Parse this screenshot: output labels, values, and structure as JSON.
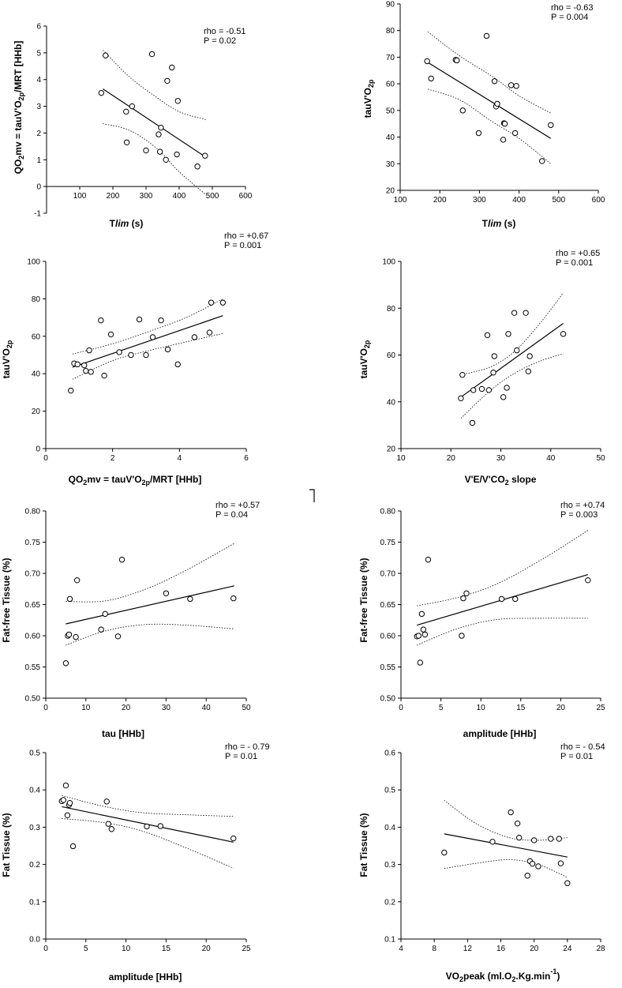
{
  "chart_data": [
    {
      "type": "scatter",
      "id": "p1",
      "xlim": [
        0,
        600
      ],
      "xticks": [
        100,
        200,
        300,
        400,
        500,
        600
      ],
      "ylim": [
        -1,
        6
      ],
      "yticks": [
        -1,
        0,
        1,
        2,
        3,
        4,
        5,
        6
      ],
      "stat_rho": "rho = -0.51",
      "stat_p": "P = 0.02",
      "x": [
        165,
        178,
        240,
        242,
        258,
        300,
        318,
        338,
        342,
        345,
        360,
        364,
        378,
        393,
        396,
        455,
        478
      ],
      "y": [
        3.5,
        4.9,
        2.8,
        1.65,
        3.0,
        1.35,
        4.95,
        1.95,
        1.3,
        2.2,
        1.0,
        3.95,
        4.45,
        1.2,
        3.2,
        0.75,
        1.15
      ],
      "fit": {
        "x": [
          170,
          480
        ],
        "y": [
          3.65,
          1.1
        ]
      },
      "ci_upper": {
        "x": [
          170,
          250,
          330,
          400,
          480
        ],
        "y": [
          5.1,
          4.1,
          3.35,
          2.8,
          2.5
        ]
      },
      "ci_lower": {
        "x": [
          170,
          250,
          330,
          400,
          480
        ],
        "y": [
          2.35,
          2.1,
          1.45,
          0.55,
          -0.3
        ]
      }
    },
    {
      "type": "scatter",
      "id": "p2",
      "stat_rho": "rho = -0.63",
      "stat_p": "P = 0.004",
      "xlim": [
        100,
        600
      ],
      "xticks": [
        100,
        200,
        300,
        400,
        500,
        600
      ],
      "ylim": [
        20,
        90
      ],
      "yticks": [
        20,
        30,
        40,
        50,
        60,
        70,
        80,
        90
      ],
      "x": [
        168,
        178,
        240,
        243,
        258,
        298,
        318,
        338,
        342,
        345,
        360,
        362,
        364,
        380,
        390,
        393,
        458,
        480
      ],
      "y": [
        68.5,
        62,
        69,
        68.8,
        50,
        41.5,
        78,
        61,
        51.5,
        52.5,
        39,
        45.2,
        45,
        59.5,
        41.5,
        59.2,
        31,
        44.5
      ],
      "fit": {
        "x": [
          170,
          480
        ],
        "y": [
          68,
          39.5
        ]
      },
      "ci_upper": {
        "x": [
          170,
          250,
          330,
          400,
          480
        ],
        "y": [
          79.5,
          70.5,
          63,
          55.5,
          49
        ]
      },
      "ci_lower": {
        "x": [
          170,
          250,
          330,
          400,
          480
        ],
        "y": [
          58,
          54,
          46,
          39.5,
          30
        ]
      }
    },
    {
      "type": "scatter",
      "id": "p3",
      "stat_rho": "rho = +0.67",
      "stat_p": "P = 0.001",
      "xlim": [
        0,
        6
      ],
      "xticks": [
        0,
        2,
        4,
        6
      ],
      "ylim": [
        0,
        100
      ],
      "yticks": [
        0,
        20,
        40,
        60,
        80,
        100
      ],
      "x": [
        0.75,
        0.85,
        0.95,
        1.15,
        1.2,
        1.3,
        1.35,
        1.65,
        1.75,
        1.95,
        2.2,
        2.55,
        2.8,
        3.0,
        3.2,
        3.45,
        3.65,
        3.95,
        4.45,
        4.9,
        4.95,
        5.3
      ],
      "y": [
        31,
        45.5,
        45,
        44.5,
        41.5,
        52.5,
        41,
        68.5,
        39,
        61,
        51.5,
        50,
        69,
        50,
        59.5,
        68.5,
        53,
        45,
        59.5,
        62,
        78,
        78
      ],
      "fit": {
        "x": [
          0.8,
          5.3
        ],
        "y": [
          43.5,
          71
        ]
      },
      "ci_upper": {
        "x": [
          0.8,
          2.0,
          3.0,
          4.2,
          5.3
        ],
        "y": [
          50.5,
          56,
          62,
          70,
          80
        ]
      },
      "ci_lower": {
        "x": [
          0.8,
          2.0,
          3.0,
          4.2,
          5.3
        ],
        "y": [
          37,
          47,
          52,
          57,
          61.5
        ]
      }
    },
    {
      "type": "scatter",
      "id": "p4",
      "stat_rho": "rho = +0.65",
      "stat_p": "P = 0.001",
      "xlim": [
        10,
        50
      ],
      "xticks": [
        10,
        20,
        30,
        40,
        50
      ],
      "ylim": [
        20,
        100
      ],
      "yticks": [
        20,
        40,
        60,
        80,
        100
      ],
      "x": [
        22,
        22.3,
        24.5,
        24.3,
        26.2,
        27.3,
        27.6,
        28.5,
        28.7,
        30.5,
        31.2,
        31.5,
        32.7,
        33.2,
        35,
        35.5,
        35.8,
        42.5
      ],
      "y": [
        41.5,
        51.5,
        45,
        31,
        45.5,
        68.5,
        45,
        52.5,
        59.5,
        42,
        46,
        69,
        78,
        62,
        78,
        53,
        59.5,
        69
      ],
      "fit": {
        "x": [
          22,
          42.5
        ],
        "y": [
          42,
          73.5
        ]
      },
      "ci_upper": {
        "x": [
          22,
          28,
          33,
          38,
          42.5
        ],
        "y": [
          51.5,
          55,
          62,
          74,
          86.5
        ]
      },
      "ci_lower": {
        "x": [
          22,
          28,
          33,
          38,
          42.5
        ],
        "y": [
          33,
          45,
          52.5,
          57.5,
          60.5
        ]
      }
    },
    {
      "type": "scatter",
      "id": "p5",
      "stat_rho": "rho = +0.57",
      "stat_p": "P = 0.04",
      "xlim": [
        0,
        50
      ],
      "xticks": [
        0,
        10,
        20,
        30,
        40,
        50
      ],
      "ylim": [
        0.5,
        0.8
      ],
      "yticks": [
        0.5,
        0.55,
        0.6,
        0.65,
        0.7,
        0.75,
        0.8
      ],
      "ytick_labels": [
        "0.50",
        "0.55",
        "0.60",
        "0.65",
        "0.70",
        "0.75",
        "0.80"
      ],
      "x": [
        5.0,
        5.5,
        5.8,
        6.0,
        7.5,
        7.8,
        13.8,
        14.8,
        18,
        19,
        30,
        36,
        46.8
      ],
      "y": [
        0.556,
        0.6,
        0.602,
        0.659,
        0.598,
        0.689,
        0.61,
        0.635,
        0.599,
        0.722,
        0.668,
        0.659,
        0.66
      ],
      "fit": {
        "x": [
          5,
          47
        ],
        "y": [
          0.619,
          0.68
        ]
      },
      "ci_upper": {
        "x": [
          5,
          15,
          25,
          35,
          47
        ],
        "y": [
          0.655,
          0.656,
          0.675,
          0.705,
          0.748
        ]
      },
      "ci_lower": {
        "x": [
          5,
          15,
          25,
          35,
          47
        ],
        "y": [
          0.585,
          0.608,
          0.618,
          0.617,
          0.611
        ]
      }
    },
    {
      "type": "scatter",
      "id": "p6",
      "stat_rho": "rho = +0.74",
      "stat_p": "P = 0.003",
      "xlim": [
        0,
        25
      ],
      "xticks": [
        0,
        5,
        10,
        15,
        20,
        25
      ],
      "ylim": [
        0.5,
        0.8
      ],
      "yticks": [
        0.5,
        0.55,
        0.6,
        0.65,
        0.7,
        0.75,
        0.8
      ],
      "ytick_labels": [
        "0.50",
        "0.55",
        "0.60",
        "0.65",
        "0.70",
        "0.75",
        "0.80"
      ],
      "x": [
        2.0,
        2.2,
        2.4,
        2.6,
        2.8,
        3.0,
        3.4,
        7.6,
        7.8,
        8.2,
        12.6,
        14.3,
        23.4
      ],
      "y": [
        0.599,
        0.6,
        0.557,
        0.635,
        0.61,
        0.602,
        0.722,
        0.6,
        0.66,
        0.668,
        0.659,
        0.659,
        0.689
      ],
      "fit": {
        "x": [
          2,
          23.4
        ],
        "y": [
          0.617,
          0.698
        ]
      },
      "ci_upper": {
        "x": [
          2,
          7,
          12,
          18,
          23.4
        ],
        "y": [
          0.648,
          0.661,
          0.683,
          0.725,
          0.769
        ]
      },
      "ci_lower": {
        "x": [
          2,
          7,
          12,
          18,
          23.4
        ],
        "y": [
          0.585,
          0.611,
          0.626,
          0.628,
          0.628
        ]
      }
    },
    {
      "type": "scatter",
      "id": "p7",
      "stat_rho": "rho = - 0.79",
      "stat_p": "P = 0.01",
      "xlim": [
        0,
        25
      ],
      "xticks": [
        0,
        5,
        10,
        15,
        20,
        25
      ],
      "ylim": [
        0.0,
        0.5
      ],
      "yticks": [
        0.0,
        0.1,
        0.2,
        0.3,
        0.4,
        0.5
      ],
      "ytick_labels": [
        "0.0",
        "0.1",
        "0.2",
        "0.3",
        "0.4",
        "0.5"
      ],
      "x": [
        2.0,
        2.2,
        2.5,
        2.7,
        2.9,
        3.0,
        3.4,
        7.6,
        7.8,
        8.2,
        12.6,
        14.3,
        23.4
      ],
      "y": [
        0.37,
        0.373,
        0.412,
        0.332,
        0.36,
        0.365,
        0.249,
        0.369,
        0.309,
        0.295,
        0.302,
        0.303,
        0.27
      ],
      "fit": {
        "x": [
          2,
          23.4
        ],
        "y": [
          0.355,
          0.26
        ]
      },
      "ci_upper": {
        "x": [
          2,
          7,
          12,
          18,
          23.4
        ],
        "y": [
          0.385,
          0.357,
          0.339,
          0.333,
          0.329
        ]
      },
      "ci_lower": {
        "x": [
          2,
          7,
          12,
          18,
          23.4
        ],
        "y": [
          0.323,
          0.313,
          0.29,
          0.24,
          0.19
        ]
      }
    },
    {
      "type": "scatter",
      "id": "p8",
      "stat_rho": "rho = - 0.54",
      "stat_p": "P = 0.01",
      "xlim": [
        4,
        28
      ],
      "xticks": [
        4,
        8,
        12,
        16,
        20,
        24,
        28
      ],
      "ylim": [
        0.1,
        0.6
      ],
      "yticks": [
        0.1,
        0.2,
        0.3,
        0.4,
        0.5,
        0.6
      ],
      "ytick_labels": [
        "0.1",
        "0.2",
        "0.3",
        "0.4",
        "0.5",
        "0.6"
      ],
      "x": [
        9.2,
        15.0,
        17.2,
        18.0,
        18.2,
        19.2,
        19.5,
        19.8,
        20,
        20.5,
        22,
        23,
        23.2,
        24
      ],
      "y": [
        0.332,
        0.361,
        0.44,
        0.41,
        0.372,
        0.27,
        0.309,
        0.302,
        0.365,
        0.295,
        0.369,
        0.369,
        0.303,
        0.25
      ],
      "fit": {
        "x": [
          9.2,
          24
        ],
        "y": [
          0.382,
          0.32
        ]
      },
      "ci_upper": {
        "x": [
          9.2,
          13,
          17,
          20.5,
          24
        ],
        "y": [
          0.472,
          0.41,
          0.372,
          0.365,
          0.372
        ]
      },
      "ci_lower": {
        "x": [
          9.2,
          13,
          17,
          20.5,
          24
        ],
        "y": [
          0.289,
          0.303,
          0.313,
          0.3,
          0.265
        ]
      }
    }
  ]
}
